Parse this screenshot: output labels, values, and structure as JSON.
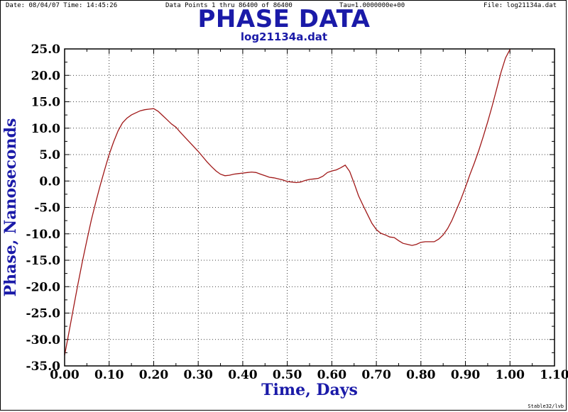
{
  "header": {
    "date": "Date: 08/04/07   Time: 14:45:26",
    "points": "Data Points 1 thru 86400  of  86400",
    "tau": "Tau=1.0000000e+00",
    "file": "File: log21134a.dat"
  },
  "footer": "Stable32/lvb",
  "chart_data": {
    "type": "line",
    "title": "PHASE DATA",
    "subtitle": "log21134a.dat",
    "xlabel": "Time, Days",
    "ylabel": "Phase, Nanoseconds",
    "xlim": [
      0.0,
      1.1
    ],
    "ylim": [
      -35.0,
      25.0
    ],
    "x_ticks": [
      "0.00",
      "0.10",
      "0.20",
      "0.30",
      "0.40",
      "0.50",
      "0.60",
      "0.70",
      "0.80",
      "0.90",
      "1.00",
      "1.10"
    ],
    "y_ticks": [
      "25.0",
      "20.0",
      "15.0",
      "10.0",
      "5.0",
      "0.0",
      "-5.0",
      "-10.0",
      "-15.0",
      "-20.0",
      "-25.0",
      "-30.0",
      "-35.0"
    ],
    "grid": true,
    "line_color": "#a01818",
    "series": [
      {
        "x": [
          0.0,
          0.01,
          0.02,
          0.03,
          0.04,
          0.05,
          0.06,
          0.07,
          0.08,
          0.09,
          0.1,
          0.11,
          0.12,
          0.13,
          0.14,
          0.15,
          0.16,
          0.17,
          0.18,
          0.19,
          0.2,
          0.21,
          0.22,
          0.23,
          0.24,
          0.25,
          0.26,
          0.27,
          0.28,
          0.29,
          0.3,
          0.31,
          0.32,
          0.33,
          0.34,
          0.35,
          0.36,
          0.37,
          0.38,
          0.39,
          0.4,
          0.41,
          0.42,
          0.43,
          0.44,
          0.45,
          0.46,
          0.47,
          0.48,
          0.49,
          0.5,
          0.51,
          0.52,
          0.53,
          0.54,
          0.55,
          0.56,
          0.57,
          0.58,
          0.59,
          0.6,
          0.61,
          0.62,
          0.63,
          0.64,
          0.65,
          0.66,
          0.67,
          0.68,
          0.69,
          0.7,
          0.71,
          0.72,
          0.73,
          0.74,
          0.75,
          0.76,
          0.77,
          0.78,
          0.79,
          0.8,
          0.81,
          0.82,
          0.83,
          0.84,
          0.85,
          0.86,
          0.87,
          0.88,
          0.89,
          0.9,
          0.91,
          0.92,
          0.93,
          0.94,
          0.95,
          0.96,
          0.97,
          0.98,
          0.99,
          1.0
        ],
        "values": [
          -33.0,
          -28.5,
          -24.0,
          -19.5,
          -15.2,
          -11.2,
          -7.4,
          -4.0,
          -0.8,
          2.2,
          5.0,
          7.4,
          9.5,
          11.0,
          11.9,
          12.5,
          12.9,
          13.3,
          13.5,
          13.6,
          13.7,
          13.2,
          12.4,
          11.6,
          10.8,
          10.2,
          9.2,
          8.3,
          7.4,
          6.5,
          5.6,
          4.6,
          3.6,
          2.7,
          1.9,
          1.3,
          1.0,
          1.1,
          1.3,
          1.4,
          1.5,
          1.6,
          1.7,
          1.6,
          1.3,
          1.0,
          0.7,
          0.6,
          0.4,
          0.2,
          -0.1,
          -0.2,
          -0.3,
          -0.2,
          0.1,
          0.3,
          0.4,
          0.5,
          0.9,
          1.6,
          1.9,
          2.1,
          2.5,
          3.0,
          1.8,
          -0.4,
          -2.8,
          -4.6,
          -6.3,
          -8.0,
          -9.2,
          -9.9,
          -10.2,
          -10.6,
          -10.7,
          -11.3,
          -11.8,
          -12.0,
          -12.2,
          -12.0,
          -11.6,
          -11.5,
          -11.5,
          -11.5,
          -11.0,
          -10.2,
          -9.0,
          -7.4,
          -5.4,
          -3.4,
          -1.2,
          1.2,
          3.4,
          5.8,
          8.4,
          11.2,
          14.2,
          17.4,
          20.6,
          23.3,
          24.9
        ]
      }
    ]
  }
}
